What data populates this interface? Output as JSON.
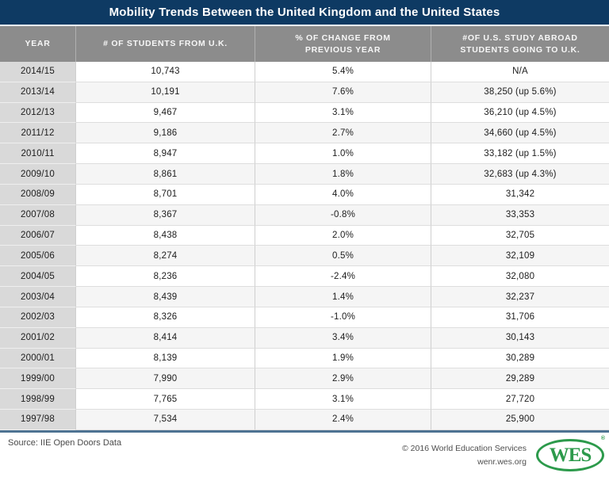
{
  "title": "Mobility Trends Between the United Kingdom and the United States",
  "header": {
    "columns": [
      "YEAR",
      "# OF STUDENTS FROM U.K.",
      "% OF CHANGE FROM\nPREVIOUS YEAR",
      "#OF U.S. STUDY ABROAD\nSTUDENTS GOING TO U.K."
    ]
  },
  "chart_data": {
    "type": "table",
    "title": "Mobility Trends Between the United Kingdom and the United States",
    "columns": [
      "Year",
      "# of Students from U.K.",
      "% of Change from Previous Year",
      "# of U.S. Study Abroad Students Going to U.K."
    ],
    "rows": [
      [
        "2014/15",
        "10,743",
        "5.4%",
        "N/A"
      ],
      [
        "2013/14",
        "10,191",
        "7.6%",
        "38,250 (up 5.6%)"
      ],
      [
        "2012/13",
        "9,467",
        "3.1%",
        "36,210 (up 4.5%)"
      ],
      [
        "2011/12",
        "9,186",
        "2.7%",
        "34,660 (up 4.5%)"
      ],
      [
        "2010/11",
        "8,947",
        "1.0%",
        "33,182 (up 1.5%)"
      ],
      [
        "2009/10",
        "8,861",
        "1.8%",
        "32,683 (up 4.3%)"
      ],
      [
        "2008/09",
        "8,701",
        "4.0%",
        "31,342"
      ],
      [
        "2007/08",
        "8,367",
        "-0.8%",
        "33,353"
      ],
      [
        "2006/07",
        "8,438",
        "2.0%",
        "32,705"
      ],
      [
        "2005/06",
        "8,274",
        "0.5%",
        "32,109"
      ],
      [
        "2004/05",
        "8,236",
        "-2.4%",
        "32,080"
      ],
      [
        "2003/04",
        "8,439",
        "1.4%",
        "32,237"
      ],
      [
        "2002/03",
        "8,326",
        "-1.0%",
        "31,706"
      ],
      [
        "2001/02",
        "8,414",
        "3.4%",
        "30,143"
      ],
      [
        "2000/01",
        "8,139",
        "1.9%",
        "30,289"
      ],
      [
        "1999/00",
        "7,990",
        "2.9%",
        "29,289"
      ],
      [
        "1998/99",
        "7,765",
        "3.1%",
        "27,720"
      ],
      [
        "1997/98",
        "7,534",
        "2.4%",
        "25,900"
      ]
    ]
  },
  "footer": {
    "source": "Source: IIE Open Doors Data",
    "copyright": "© 2016 World Education Services",
    "website": "wenr.wes.org",
    "logo_text": "WES",
    "registered_mark": "®"
  },
  "colors": {
    "title_bar_navy": "#0e3a63",
    "header_gray": "#8c8c8c",
    "year_column_gray": "#d9d9d9",
    "alt_row_gray": "#f5f5f5",
    "bottom_rule_blue": "#4e7392",
    "wes_brand_green": "#2c9a4b"
  }
}
